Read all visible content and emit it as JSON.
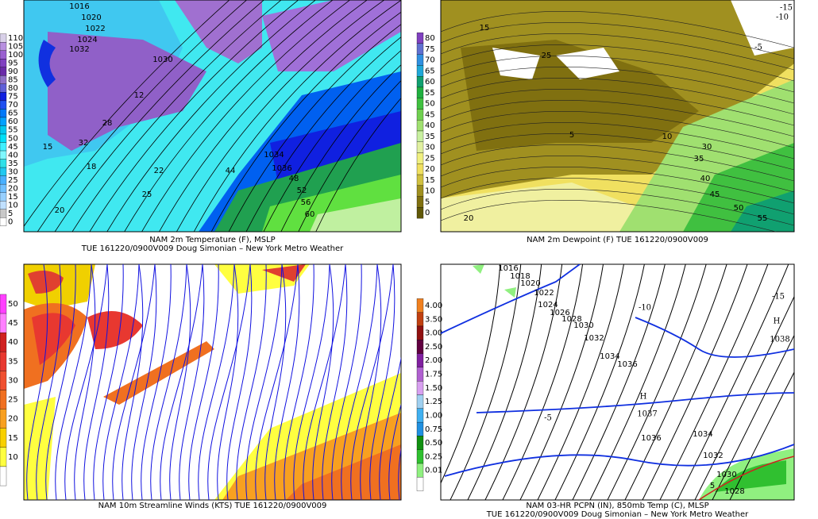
{
  "panels": [
    {
      "caption": [
        "NAM 2m Temperature (F), MSLP",
        "TUE 161220/0900V009 Doug Simonian – New York Metro Weather"
      ],
      "colorbar": {
        "labels": [
          110,
          105,
          100,
          95,
          90,
          85,
          80,
          75,
          70,
          65,
          60,
          55,
          50,
          45,
          40,
          35,
          30,
          25,
          20,
          15,
          10,
          5,
          0
        ],
        "colors": [
          "#d8d0e8",
          "#b890e0",
          "#9a60d0",
          "#8040c0",
          "#6a2aa8",
          "#9070c8",
          "#6060d8",
          "#1020e0",
          "#2050f0",
          "#0078f8",
          "#00a0ff",
          "#00c8f0",
          "#00e0f8",
          "#40f0ff",
          "#80f8ff",
          "#30e0e8",
          "#20c8f0",
          "#48b0ff",
          "#70c0ff",
          "#98d0ff",
          "#c0e0ff",
          "#c8c8c8",
          "#ffffff"
        ]
      },
      "map_labels": [
        "1016",
        "1020",
        "1022",
        "1024",
        "1030",
        "1032",
        "1034",
        "1036",
        "12",
        "15",
        "18",
        "20",
        "22",
        "25",
        "28",
        "32",
        "44",
        "48",
        "52",
        "56",
        "60"
      ]
    },
    {
      "caption": [
        "NAM 2m Dewpoint (F)  TUE 161220/0900V009"
      ],
      "colorbar": {
        "labels": [
          80,
          75,
          70,
          65,
          60,
          55,
          50,
          45,
          40,
          35,
          30,
          25,
          20,
          15,
          10,
          5,
          0
        ],
        "colors": [
          "#8040c0",
          "#6070d0",
          "#3090e0",
          "#20a8d8",
          "#10a070",
          "#20b040",
          "#40c040",
          "#70d050",
          "#a0e070",
          "#c8f0a0",
          "#e0f0a0",
          "#f0f080",
          "#f0e060",
          "#d0c040",
          "#a09020",
          "#807010",
          "#605808"
        ]
      },
      "map_labels": [
        "15",
        "25",
        "5",
        "10",
        "20",
        "30",
        "35",
        "40",
        "45",
        "50",
        "55",
        "-5",
        "-10",
        "-15"
      ]
    },
    {
      "caption": [
        "NAM 10m Streamline Winds (KTS)  TUE 161220/0900V009"
      ],
      "colorbar": {
        "labels": [
          50,
          45,
          40,
          35,
          30,
          25,
          20,
          15,
          10
        ],
        "colors": [
          "#ff40ff",
          "#ff80ff",
          "#d02020",
          "#e83830",
          "#f05030",
          "#f07020",
          "#f8a020",
          "#f8d000",
          "#ffff40",
          "#ffffff"
        ]
      },
      "map_labels": []
    },
    {
      "caption": [
        "NAM 03-HR PCPN (IN), 850mb Temp (C), MLSP",
        "TUE 161220/0900V009 Doug Simonian – New York Metro Weather"
      ],
      "colorbar": {
        "labels": [
          "4.00",
          "3.50",
          "3.00",
          "2.50",
          "2.00",
          "1.75",
          "1.50",
          "1.25",
          "1.00",
          "0.75",
          "0.50",
          "0.25",
          "0.01"
        ],
        "colors": [
          "#f08020",
          "#c04010",
          "#901010",
          "#600040",
          "#8020a0",
          "#b060d0",
          "#d8a0f0",
          "#a0d0f0",
          "#40b0f0",
          "#2090e0",
          "#109010",
          "#30c030",
          "#90f080",
          "#ffffff"
        ]
      },
      "map_labels": [
        "1016",
        "1018",
        "1020",
        "1022",
        "1024",
        "1026",
        "1028",
        "1030",
        "1032",
        "1034",
        "1036",
        "1036",
        "1034",
        "1032",
        "1030",
        "1028",
        "H",
        "1038",
        "H",
        "1037",
        "-15",
        "-10",
        "-5",
        "5"
      ]
    }
  ]
}
